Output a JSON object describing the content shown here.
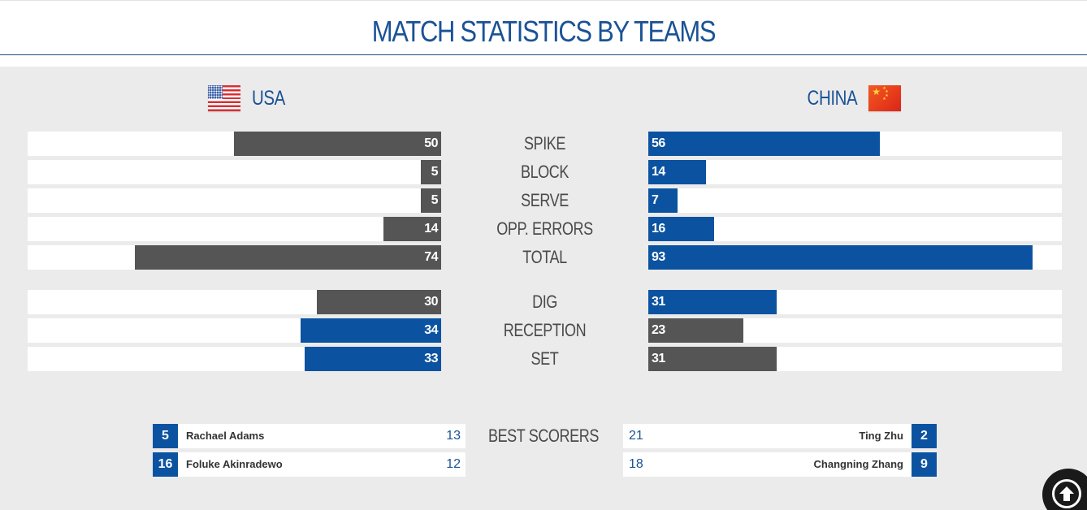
{
  "title": "MATCH STATISTICS BY TEAMS",
  "teams": {
    "left": {
      "name": "USA",
      "flag_icon": "usa-flag-icon"
    },
    "right": {
      "name": "CHINA",
      "flag_icon": "china-flag-icon"
    }
  },
  "colors": {
    "accent": "#0b53a1",
    "neutral_bar": "#555555",
    "title": "#1a5296",
    "panel": "#ecebec"
  },
  "stats": [
    {
      "label": "SPIKE",
      "left": 50,
      "right": 56,
      "left_color": "gray",
      "right_color": "blue",
      "max": 100
    },
    {
      "label": "BLOCK",
      "left": 5,
      "right": 14,
      "left_color": "gray",
      "right_color": "blue",
      "max": 100
    },
    {
      "label": "SERVE",
      "left": 5,
      "right": 7,
      "left_color": "gray",
      "right_color": "blue",
      "max": 100
    },
    {
      "label": "OPP. ERRORS",
      "left": 14,
      "right": 16,
      "left_color": "gray",
      "right_color": "blue",
      "max": 100
    },
    {
      "label": "TOTAL",
      "left": 74,
      "right": 93,
      "left_color": "gray",
      "right_color": "blue",
      "max": 100
    }
  ],
  "stats2": [
    {
      "label": "DIG",
      "left": 30,
      "right": 31,
      "left_color": "gray",
      "right_color": "blue",
      "max": 100
    },
    {
      "label": "RECEPTION",
      "left": 34,
      "right": 23,
      "left_color": "blue",
      "right_color": "gray",
      "max": 100
    },
    {
      "label": "SET",
      "left": 33,
      "right": 31,
      "left_color": "blue",
      "right_color": "gray",
      "max": 100
    }
  ],
  "best_scorers": {
    "label": "BEST SCORERS",
    "left": [
      {
        "number": "5",
        "name": "Rachael Adams",
        "points": "13"
      },
      {
        "number": "16",
        "name": "Foluke Akinradewo",
        "points": "12"
      }
    ],
    "right": [
      {
        "number": "2",
        "name": "Ting Zhu",
        "points": "21"
      },
      {
        "number": "9",
        "name": "Changning Zhang",
        "points": "18"
      }
    ]
  },
  "scroll_top_icon": "arrow-up-circle-icon"
}
